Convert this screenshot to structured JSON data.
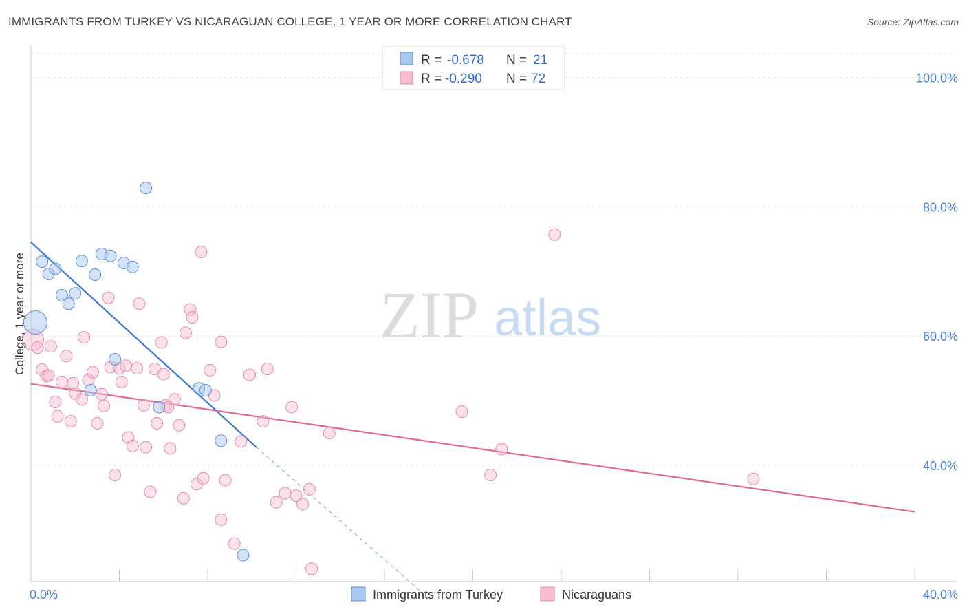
{
  "header": {
    "title": "IMMIGRANTS FROM TURKEY VS NICARAGUAN COLLEGE, 1 YEAR OR MORE CORRELATION CHART",
    "source": "Source: ZipAtlas.com"
  },
  "watermark": {
    "zip": "ZIP",
    "atlas": "atlas"
  },
  "legend": {
    "rows": [
      {
        "r_label": "R =",
        "r_value": "-0.678",
        "n_label": "N =",
        "n_value": "21"
      },
      {
        "r_label": "R =",
        "r_value": "-0.290",
        "n_label": "N =",
        "n_value": "72"
      }
    ]
  },
  "bottom_legend": {
    "items": [
      {
        "label": "Immigrants from Turkey"
      },
      {
        "label": "Nicaraguans"
      }
    ]
  },
  "colors": {
    "series1_fill": "#a9c8ef",
    "series1_stroke": "#5b8fd6",
    "series1_line": "#3a78d6",
    "series2_fill": "#f6bcd0",
    "series2_stroke": "#e48aab",
    "series2_line": "#e06a96",
    "tick_color": "#4a7fd1"
  },
  "chart_data": {
    "type": "scatter",
    "title": "IMMIGRANTS FROM TURKEY VS NICARAGUAN COLLEGE, 1 YEAR OR MORE CORRELATION CHART",
    "ylabel": "College, 1 year or more",
    "xlabel": "",
    "xlim": [
      0,
      40
    ],
    "ylim": [
      22,
      104
    ],
    "x_tick_labels": [
      "0.0%",
      "40.0%"
    ],
    "y_ticks": [
      40,
      60,
      80,
      100
    ],
    "y_tick_labels": [
      "40.0%",
      "60.0%",
      "80.0%",
      "100.0%"
    ],
    "grid": true,
    "legend_position": "top-center",
    "series": [
      {
        "name": "Immigrants from Turkey",
        "r": -0.678,
        "n": 21,
        "points": [
          [
            0.2,
            62.1,
            2.0
          ],
          [
            0.5,
            71.5,
            1.0
          ],
          [
            0.8,
            69.6,
            1.0
          ],
          [
            1.1,
            70.4,
            1.0
          ],
          [
            1.4,
            66.3,
            1.0
          ],
          [
            1.7,
            65.0,
            1.0
          ],
          [
            2.0,
            66.6,
            1.0
          ],
          [
            2.3,
            71.6,
            1.0
          ],
          [
            2.9,
            69.5,
            1.0
          ],
          [
            3.2,
            72.7,
            1.0
          ],
          [
            3.6,
            72.4,
            1.0
          ],
          [
            4.2,
            71.3,
            1.0
          ],
          [
            4.6,
            70.7,
            1.0
          ],
          [
            5.2,
            82.9,
            1.0
          ],
          [
            3.8,
            56.4,
            1.0
          ],
          [
            2.7,
            51.6,
            1.0
          ],
          [
            5.8,
            49.0,
            1.0
          ],
          [
            7.6,
            51.9,
            1.0
          ],
          [
            7.9,
            51.6,
            1.0
          ],
          [
            8.6,
            43.8,
            1.0
          ],
          [
            9.6,
            26.1,
            1.0
          ]
        ],
        "trend": {
          "x0": 0,
          "y0": 74.5,
          "x1": 10.2,
          "y1": 42.8
        },
        "trend_extension": {
          "x0": 10.2,
          "y0": 42.8,
          "x1": 17.6,
          "y1": 20.6
        }
      },
      {
        "name": "Nicaraguans",
        "r": -0.29,
        "n": 72,
        "points": [
          [
            0.1,
            59.4,
            1.8
          ],
          [
            0.3,
            58.2,
            1.0
          ],
          [
            0.5,
            54.8,
            1.0
          ],
          [
            0.7,
            53.8,
            1.0
          ],
          [
            0.8,
            53.9,
            1.0
          ],
          [
            0.9,
            58.4,
            1.0
          ],
          [
            1.1,
            49.8,
            1.0
          ],
          [
            1.2,
            47.6,
            1.0
          ],
          [
            1.4,
            52.9,
            1.0
          ],
          [
            1.6,
            56.9,
            1.0
          ],
          [
            1.8,
            46.8,
            1.0
          ],
          [
            1.9,
            52.7,
            1.0
          ],
          [
            2.0,
            51.1,
            1.0
          ],
          [
            2.3,
            50.2,
            1.0
          ],
          [
            2.4,
            59.8,
            1.0
          ],
          [
            2.6,
            53.2,
            1.0
          ],
          [
            2.8,
            54.4,
            1.0
          ],
          [
            3.0,
            46.5,
            1.0
          ],
          [
            3.2,
            51.0,
            1.0
          ],
          [
            3.3,
            49.2,
            1.0
          ],
          [
            3.5,
            65.9,
            1.0
          ],
          [
            3.6,
            55.2,
            1.0
          ],
          [
            3.8,
            38.5,
            1.0
          ],
          [
            4.0,
            55.0,
            1.0
          ],
          [
            4.1,
            52.9,
            1.0
          ],
          [
            4.3,
            55.4,
            1.0
          ],
          [
            4.4,
            44.3,
            1.0
          ],
          [
            4.6,
            43.0,
            1.0
          ],
          [
            4.8,
            55.0,
            1.0
          ],
          [
            4.9,
            65.0,
            1.0
          ],
          [
            5.1,
            49.3,
            1.0
          ],
          [
            5.2,
            42.8,
            1.0
          ],
          [
            5.4,
            35.9,
            1.0
          ],
          [
            5.6,
            54.9,
            1.0
          ],
          [
            5.7,
            46.5,
            1.0
          ],
          [
            5.9,
            59.0,
            1.0
          ],
          [
            6.0,
            54.1,
            1.0
          ],
          [
            6.1,
            49.3,
            1.0
          ],
          [
            6.3,
            42.6,
            1.0
          ],
          [
            6.5,
            50.2,
            1.0
          ],
          [
            6.7,
            46.2,
            1.0
          ],
          [
            6.9,
            34.9,
            1.0
          ],
          [
            7.0,
            60.5,
            1.0
          ],
          [
            7.2,
            64.1,
            1.0
          ],
          [
            7.3,
            62.9,
            1.0
          ],
          [
            7.5,
            37.1,
            1.0
          ],
          [
            7.7,
            73.0,
            1.0
          ],
          [
            7.8,
            38.0,
            1.0
          ],
          [
            8.1,
            54.7,
            1.0
          ],
          [
            8.3,
            50.8,
            1.0
          ],
          [
            8.6,
            59.1,
            1.0
          ],
          [
            8.8,
            37.7,
            1.0
          ],
          [
            8.6,
            31.6,
            1.0
          ],
          [
            9.2,
            27.9,
            1.0
          ],
          [
            9.5,
            43.7,
            1.0
          ],
          [
            9.9,
            54.0,
            1.0
          ],
          [
            10.5,
            46.8,
            1.0
          ],
          [
            10.7,
            54.9,
            1.0
          ],
          [
            11.1,
            34.3,
            1.0
          ],
          [
            11.5,
            35.7,
            1.0
          ],
          [
            11.8,
            49.0,
            1.0
          ],
          [
            12.0,
            35.3,
            1.0
          ],
          [
            12.3,
            34.0,
            1.0
          ],
          [
            12.6,
            36.3,
            1.0
          ],
          [
            12.7,
            24.0,
            1.0
          ],
          [
            13.5,
            45.0,
            1.0
          ],
          [
            19.5,
            48.3,
            1.0
          ],
          [
            20.8,
            38.5,
            1.0
          ],
          [
            21.3,
            42.5,
            1.0
          ],
          [
            23.7,
            75.7,
            1.0
          ],
          [
            32.7,
            37.9,
            1.0
          ],
          [
            6.2,
            49.0,
            1.0
          ]
        ],
        "trend": {
          "x0": 0,
          "y0": 52.6,
          "x1": 40,
          "y1": 32.8
        }
      }
    ]
  }
}
